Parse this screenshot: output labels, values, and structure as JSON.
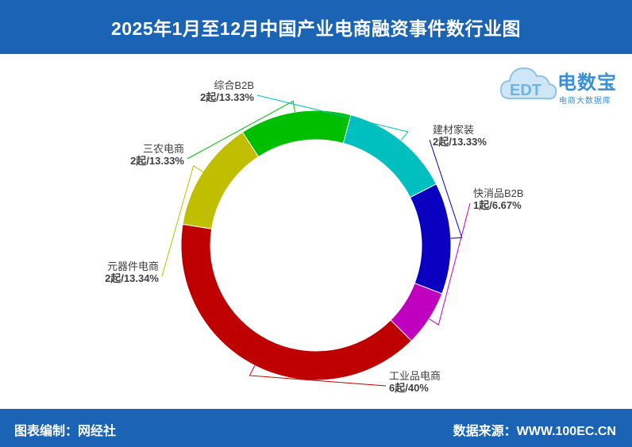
{
  "header": {
    "title": "2025年1月至12月中国产业电商融资事件数行业图"
  },
  "footer": {
    "left": "图表编制：网经社",
    "right": "数据来源：WWW.100EC.CN"
  },
  "logo": {
    "brand": "电数宝",
    "sub": "电商大数据库",
    "mark": "EDT"
  },
  "colors": {
    "header_bg": "#1a63b5",
    "label_text": "#404040"
  },
  "chart_data": {
    "type": "pie",
    "donut": true,
    "slices": [
      {
        "name": "建材家装",
        "count": 2,
        "percent": "13.33%",
        "label": "2起/13.33%",
        "color": "#0a00bf"
      },
      {
        "name": "快消品B2B",
        "count": 1,
        "percent": "6.67%",
        "label": "1起/6.67%",
        "color": "#bf00bf"
      },
      {
        "name": "工业品电商",
        "count": 6,
        "percent": "40%",
        "label": "6起/40%",
        "color": "#bf0000"
      },
      {
        "name": "元器件电商",
        "count": 2,
        "percent": "13.34%",
        "label": "2起/13.34%",
        "color": "#bfbf00"
      },
      {
        "name": "三农电商",
        "count": 2,
        "percent": "13.33%",
        "label": "2起/13.33%",
        "color": "#00bf00"
      },
      {
        "name": "综合B2B",
        "count": 2,
        "percent": "13.33%",
        "label": "2起/13.33%",
        "color": "#00bfbf"
      }
    ]
  }
}
